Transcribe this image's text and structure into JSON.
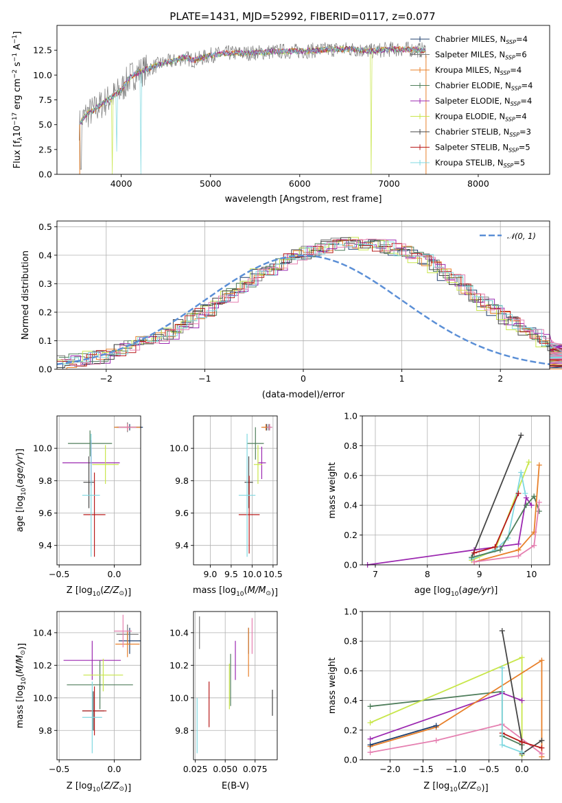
{
  "figure_title": "PLATE=1431, MJD=52992, FIBERID=0117, z=0.077",
  "colors": {
    "Chabrier MILES": "#1f3f6e",
    "Salpeter MILES": "#7a7a7a",
    "Kroupa MILES": "#e8802a",
    "Chabrier ELODIE": "#4e7d5a",
    "Salpeter ELODIE": "#9b27b0",
    "Kroupa ELODIE": "#c8e64a",
    "Chabrier STELIB": "#454545",
    "Salpeter STELIB": "#b71818",
    "Kroupa STELIB": "#7fd8e0",
    "gauss": "#5b8fd6",
    "pink": "#e57fb0"
  },
  "legend_spectrum": [
    {
      "model": "Chabrier MILES",
      "n": "4"
    },
    {
      "model": "Salpeter MILES",
      "n": "6"
    },
    {
      "model": "Kroupa MILES",
      "n": "4"
    },
    {
      "model": "Chabrier ELODIE",
      "n": "4"
    },
    {
      "model": "Salpeter ELODIE",
      "n": "4"
    },
    {
      "model": "Kroupa ELODIE",
      "n": "4"
    },
    {
      "model": "Chabrier STELIB",
      "n": "3"
    },
    {
      "model": "Salpeter STELIB",
      "n": "5"
    },
    {
      "model": "Kroupa STELIB",
      "n": "5"
    }
  ],
  "chart_data": [
    {
      "id": "spectrum",
      "type": "line",
      "title": "PLATE=1431, MJD=52992, FIBERID=0117, z=0.077",
      "xlabel": "wavelength [Angstrom, rest frame]",
      "ylabel_parts": [
        "Flux [f",
        "λ",
        "10",
        "−17",
        " erg cm",
        "−2",
        " s",
        "−1",
        " A",
        "−1",
        "]"
      ],
      "xlim": [
        3280,
        8800
      ],
      "ylim": [
        0,
        15
      ],
      "xticks": [
        4000,
        5000,
        6000,
        7000,
        8000
      ],
      "yticks": [
        0.0,
        2.5,
        5.0,
        7.5,
        10.0,
        12.5
      ],
      "xtick_labels": [
        "4000",
        "5000",
        "6000",
        "7000",
        "8000"
      ],
      "ytick_labels": [
        "0.0",
        "2.5",
        "5.0",
        "7.5",
        "10.0",
        "12.5"
      ],
      "series_continuum": {
        "x": [
          3530,
          3600,
          3700,
          3800,
          3900,
          4000,
          4100,
          4200,
          4300,
          4400,
          4500,
          4600,
          4700,
          4800,
          4900,
          5000,
          5200,
          5400,
          5600,
          5800,
          6000,
          6200,
          6400,
          6600,
          6800,
          7000,
          7200,
          7400
        ],
        "y": [
          5.0,
          6.0,
          6.5,
          7.2,
          7.8,
          8.5,
          9.8,
          10.3,
          10.6,
          11.0,
          11.3,
          11.4,
          11.8,
          11.5,
          11.7,
          12.0,
          12.2,
          12.2,
          12.3,
          12.4,
          12.4,
          12.5,
          12.6,
          12.6,
          12.4,
          12.6,
          12.6,
          12.5
        ]
      },
      "notes": "nine overlapping model/data spectra; data shown in grey"
    },
    {
      "id": "residuals",
      "type": "histogram",
      "xlabel": "(data-model)/error",
      "ylabel": "Normed distribution",
      "xlim": [
        -2.5,
        2.5
      ],
      "ylim": [
        0,
        0.52
      ],
      "xticks": [
        -2,
        -1,
        0,
        1,
        2
      ],
      "yticks": [
        0.0,
        0.1,
        0.2,
        0.3,
        0.4,
        0.5
      ],
      "xtick_labels": [
        "−2",
        "−1",
        "0",
        "1",
        "2"
      ],
      "ytick_labels": [
        "0.0",
        "0.1",
        "0.2",
        "0.3",
        "0.4",
        "0.5"
      ],
      "legend": "𝒩(0, 1)",
      "bin_width": 0.1,
      "base_density": [
        0.025,
        0.03,
        0.035,
        0.04,
        0.045,
        0.055,
        0.065,
        0.075,
        0.09,
        0.1,
        0.115,
        0.13,
        0.15,
        0.17,
        0.19,
        0.21,
        0.235,
        0.26,
        0.285,
        0.31,
        0.33,
        0.35,
        0.37,
        0.385,
        0.4,
        0.41,
        0.42,
        0.43,
        0.435,
        0.44,
        0.445,
        0.44,
        0.435,
        0.43,
        0.42,
        0.41,
        0.395,
        0.38,
        0.36,
        0.335,
        0.31,
        0.28,
        0.255,
        0.23,
        0.205,
        0.18,
        0.16,
        0.14,
        0.12,
        0.1
      ],
      "tail_density": [
        0.085,
        0.07,
        0.06,
        0.05,
        0.045,
        0.04,
        0.035,
        0.03,
        0.03,
        0.025
      ],
      "gauss": {
        "mu": 0,
        "sigma": 1
      }
    },
    {
      "id": "age_vs_Z",
      "type": "errorbar",
      "xlabel": "Z [log10(Z/Z⊙)]",
      "ylabel": "age  [log10(age/yr)]",
      "xlim": [
        -0.52,
        0.24
      ],
      "ylim": [
        9.28,
        10.2
      ],
      "xticks": [
        -0.5,
        0.0
      ],
      "yticks": [
        9.4,
        9.6,
        9.8,
        10.0
      ],
      "xtick_labels": [
        "−0.5",
        "0.0"
      ],
      "ytick_labels": [
        "9.4",
        "9.6",
        "9.8",
        "10.0"
      ],
      "points": [
        {
          "model": "Chabrier MILES",
          "x": 0.14,
          "y": 10.13,
          "xerr": 0.12,
          "yerr": 0.02
        },
        {
          "model": "Salpeter MILES",
          "x": 0.12,
          "y": 10.13,
          "xerr": 0.12,
          "yerr": 0.03
        },
        {
          "model": "Kroupa MILES",
          "x": 0.12,
          "y": 10.13,
          "xerr": 0.12,
          "yerr": 0.02
        },
        {
          "model": "Chabrier ELODIE",
          "x": -0.22,
          "y": 10.03,
          "xerr": 0.2,
          "yerr": 0.08
        },
        {
          "model": "Salpeter ELODIE",
          "x": -0.21,
          "y": 9.91,
          "xerr": 0.26,
          "yerr": 0.14
        },
        {
          "model": "Kroupa ELODIE",
          "x": -0.08,
          "y": 9.9,
          "xerr": 0.12,
          "yerr": 0.12
        },
        {
          "model": "Chabrier STELIB",
          "x": -0.23,
          "y": 9.79,
          "xerr": 0.05,
          "yerr": 0.16
        },
        {
          "model": "Salpeter STELIB",
          "x": -0.18,
          "y": 9.59,
          "xerr": 0.1,
          "yerr": 0.26
        },
        {
          "model": "Kroupa STELIB",
          "x": -0.21,
          "y": 9.71,
          "xerr": 0.08,
          "yerr": 0.38
        },
        {
          "model": "pink",
          "x": 0.12,
          "y": 10.13,
          "xerr": 0.08,
          "yerr": 0.02
        }
      ]
    },
    {
      "id": "age_vs_mass",
      "type": "errorbar",
      "xlabel": "mass [log10(M/M⊙)]",
      "ylabel": "",
      "xlim": [
        8.6,
        10.6
      ],
      "ylim": [
        9.28,
        10.2
      ],
      "xticks": [
        9.0,
        9.5,
        10.0,
        10.5
      ],
      "yticks": [
        9.4,
        9.6,
        9.8,
        10.0
      ],
      "xtick_labels": [
        "9.0",
        "9.5",
        "10.0",
        "10.5"
      ],
      "ytick_labels": [
        "9.4",
        "9.6",
        "9.8",
        "10.0"
      ],
      "points": [
        {
          "model": "Chabrier MILES",
          "x": 10.35,
          "y": 10.13,
          "xerr": 0.1,
          "yerr": 0.02
        },
        {
          "model": "Salpeter MILES",
          "x": 10.4,
          "y": 10.13,
          "xerr": 0.08,
          "yerr": 0.02
        },
        {
          "model": "Kroupa MILES",
          "x": 10.33,
          "y": 10.13,
          "xerr": 0.11,
          "yerr": 0.02
        },
        {
          "model": "Chabrier ELODIE",
          "x": 10.08,
          "y": 10.03,
          "xerr": 0.2,
          "yerr": 0.1
        },
        {
          "model": "Salpeter ELODIE",
          "x": 10.23,
          "y": 9.91,
          "xerr": 0.1,
          "yerr": 0.1
        },
        {
          "model": "Kroupa ELODIE",
          "x": 10.14,
          "y": 9.9,
          "xerr": 0.1,
          "yerr": 0.12
        },
        {
          "model": "Chabrier STELIB",
          "x": 9.92,
          "y": 9.79,
          "xerr": 0.1,
          "yerr": 0.16
        },
        {
          "model": "Salpeter STELIB",
          "x": 9.93,
          "y": 9.59,
          "xerr": 0.25,
          "yerr": 0.24
        },
        {
          "model": "Kroupa STELIB",
          "x": 9.88,
          "y": 9.71,
          "xerr": 0.2,
          "yerr": 0.38
        },
        {
          "model": "pink",
          "x": 10.42,
          "y": 10.13,
          "xerr": 0.06,
          "yerr": 0.02
        }
      ]
    },
    {
      "id": "weight_vs_age",
      "type": "line",
      "xlabel": "age  [log10(age/yr)]",
      "ylabel": "mass weight",
      "xlim": [
        6.75,
        10.35
      ],
      "ylim": [
        0,
        1
      ],
      "xticks": [
        7,
        8,
        9,
        10
      ],
      "yticks": [
        0.0,
        0.2,
        0.4,
        0.6,
        0.8,
        1.0
      ],
      "xtick_labels": [
        "7",
        "8",
        "9",
        "10"
      ],
      "ytick_labels": [
        "0.0",
        "0.2",
        "0.4",
        "0.6",
        "0.8",
        "1.0"
      ],
      "series": [
        {
          "model": "Salpeter ELODIE",
          "x": [
            6.85,
            8.9,
            9.75,
            9.9,
            10.0
          ],
          "y": [
            0.0,
            0.1,
            0.14,
            0.45,
            0.4
          ]
        },
        {
          "model": "Chabrier STELIB",
          "x": [
            8.85,
            9.8
          ],
          "y": [
            0.05,
            0.87
          ]
        },
        {
          "model": "Kroupa ELODIE",
          "x": [
            8.85,
            9.3,
            9.95
          ],
          "y": [
            0.03,
            0.1,
            0.69
          ]
        },
        {
          "model": "Kroupa STELIB",
          "x": [
            8.85,
            9.3,
            9.55,
            9.8,
            9.88
          ],
          "y": [
            0.04,
            0.1,
            0.18,
            0.62,
            0.48
          ]
        },
        {
          "model": "Chabrier ELODIE",
          "x": [
            8.85,
            9.4,
            9.9,
            10.05,
            10.15
          ],
          "y": [
            0.05,
            0.1,
            0.4,
            0.46,
            0.36
          ]
        },
        {
          "model": "Salpeter STELIB",
          "x": [
            8.9,
            9.3,
            9.75
          ],
          "y": [
            0.08,
            0.12,
            0.48
          ]
        },
        {
          "model": "Kroupa MILES",
          "x": [
            8.9,
            9.75,
            10.05,
            10.15
          ],
          "y": [
            0.02,
            0.1,
            0.22,
            0.67
          ]
        },
        {
          "model": "pink",
          "x": [
            8.9,
            9.75,
            10.05,
            10.15
          ],
          "y": [
            0.02,
            0.06,
            0.13,
            0.42
          ]
        }
      ]
    },
    {
      "id": "mass_vs_Z",
      "type": "errorbar",
      "xlabel": "Z [log10(Z/Z⊙)]",
      "ylabel": "mass [log10(M/M⊙)]",
      "xlim": [
        -0.52,
        0.24
      ],
      "ylim": [
        9.62,
        10.53
      ],
      "xticks": [
        -0.5,
        0.0
      ],
      "yticks": [
        9.8,
        10.0,
        10.2,
        10.4
      ],
      "xtick_labels": [
        "−0.5",
        "0.0"
      ],
      "ytick_labels": [
        "9.8",
        "10.0",
        "10.2",
        "10.4"
      ],
      "points": [
        {
          "model": "Chabrier MILES",
          "x": 0.14,
          "y": 10.35,
          "xerr": 0.1,
          "yerr": 0.08
        },
        {
          "model": "Salpeter MILES",
          "x": 0.12,
          "y": 10.39,
          "xerr": 0.1,
          "yerr": 0.06
        },
        {
          "model": "Kroupa MILES",
          "x": 0.12,
          "y": 10.33,
          "xerr": 0.11,
          "yerr": 0.08
        },
        {
          "model": "Chabrier ELODIE",
          "x": -0.13,
          "y": 10.08,
          "xerr": 0.3,
          "yerr": 0.15
        },
        {
          "model": "Salpeter ELODIE",
          "x": -0.2,
          "y": 10.23,
          "xerr": 0.26,
          "yerr": 0.12
        },
        {
          "model": "Kroupa ELODIE",
          "x": -0.1,
          "y": 10.14,
          "xerr": 0.18,
          "yerr": 0.1
        },
        {
          "model": "Chabrier STELIB",
          "x": -0.19,
          "y": 9.92,
          "xerr": 0.1,
          "yerr": 0.12
        },
        {
          "model": "Salpeter STELIB",
          "x": -0.18,
          "y": 9.92,
          "xerr": 0.11,
          "yerr": 0.15
        },
        {
          "model": "Kroupa STELIB",
          "x": -0.2,
          "y": 9.88,
          "xerr": 0.09,
          "yerr": 0.22
        },
        {
          "model": "pink",
          "x": 0.08,
          "y": 10.41,
          "xerr": 0.08,
          "yerr": 0.1
        }
      ]
    },
    {
      "id": "mass_vs_EBV",
      "type": "errorbar",
      "xlabel": "E(B-V)",
      "ylabel": "",
      "xlim": [
        0.0235,
        0.0935
      ],
      "ylim": [
        9.62,
        10.53
      ],
      "xticks": [
        0.025,
        0.05,
        0.075
      ],
      "yticks": [
        9.8,
        10.0,
        10.2,
        10.4
      ],
      "xtick_labels": [
        "0.025",
        "0.050",
        "0.075"
      ],
      "ytick_labels": [
        "9.8",
        "10.0",
        "10.2",
        "10.4"
      ],
      "points": [
        {
          "model": "Chabrier MILES",
          "x": 0.0695,
          "y": 10.35,
          "xerr": 0.0,
          "yerr": 0.08
        },
        {
          "model": "Salpeter MILES",
          "x": 0.0285,
          "y": 10.4,
          "xerr": 0.0,
          "yerr": 0.1
        },
        {
          "model": "Kroupa MILES",
          "x": 0.0695,
          "y": 10.28,
          "xerr": 0.0,
          "yerr": 0.15
        },
        {
          "model": "Chabrier ELODIE",
          "x": 0.0545,
          "y": 10.11,
          "xerr": 0.0,
          "yerr": 0.16
        },
        {
          "model": "Salpeter ELODIE",
          "x": 0.0585,
          "y": 10.23,
          "xerr": 0.0,
          "yerr": 0.12
        },
        {
          "model": "Kroupa ELODIE",
          "x": 0.0535,
          "y": 10.07,
          "xerr": 0.0,
          "yerr": 0.14
        },
        {
          "model": "Chabrier STELIB",
          "x": 0.0895,
          "y": 9.97,
          "xerr": 0.0,
          "yerr": 0.08
        },
        {
          "model": "Salpeter STELIB",
          "x": 0.0365,
          "y": 9.96,
          "xerr": 0.0,
          "yerr": 0.14
        },
        {
          "model": "Kroupa STELIB",
          "x": 0.0265,
          "y": 9.83,
          "xerr": 0.0,
          "yerr": 0.17
        },
        {
          "model": "pink",
          "x": 0.0725,
          "y": 10.38,
          "xerr": 0.0,
          "yerr": 0.11
        }
      ]
    },
    {
      "id": "weight_vs_Z",
      "type": "line",
      "xlabel": "Z [log10(Z/Z⊙)]",
      "ylabel": "mass weight",
      "xlim": [
        -2.42,
        0.42
      ],
      "ylim": [
        0,
        1
      ],
      "xticks": [
        -2.0,
        -1.5,
        -1.0,
        -0.5,
        0.0
      ],
      "yticks": [
        0.0,
        0.2,
        0.4,
        0.6,
        0.8,
        1.0
      ],
      "xtick_labels": [
        "−2.0",
        "−1.5",
        "−1.0",
        "−0.5",
        "0.0"
      ],
      "ytick_labels": [
        "0.0",
        "0.2",
        "0.4",
        "0.6",
        "0.8",
        "1.0"
      ],
      "series": [
        {
          "model": "Chabrier ELODIE",
          "x": [
            -2.3,
            -0.3,
            -0.3,
            0.0
          ],
          "y": [
            0.36,
            0.46,
            0.16,
            0.1
          ]
        },
        {
          "model": "Kroupa ELODIE",
          "x": [
            -2.3,
            0.0,
            0.0
          ],
          "y": [
            0.25,
            0.69,
            0.03
          ]
        },
        {
          "model": "Salpeter ELODIE",
          "x": [
            -2.3,
            -0.3,
            0.0
          ],
          "y": [
            0.14,
            0.45,
            0.4
          ]
        },
        {
          "model": "Kroupa MILES",
          "x": [
            -2.3,
            -1.3,
            0.3,
            0.3
          ],
          "y": [
            0.09,
            0.22,
            0.67,
            0.02
          ]
        },
        {
          "model": "pink",
          "x": [
            -2.3,
            -1.3,
            -0.3,
            0.3
          ],
          "y": [
            0.05,
            0.13,
            0.24,
            0.04
          ]
        },
        {
          "model": "Chabrier MILES",
          "x": [
            -2.3,
            -1.3
          ],
          "y": [
            0.1,
            0.23
          ]
        },
        {
          "model": "Chabrier STELIB",
          "x": [
            -0.3,
            0.0,
            0.0,
            0.3
          ],
          "y": [
            0.87,
            0.12,
            0.04,
            0.13
          ]
        },
        {
          "model": "Salpeter STELIB",
          "x": [
            -0.3,
            0.0,
            0.3
          ],
          "y": [
            0.18,
            0.12,
            0.08
          ]
        },
        {
          "model": "Kroupa STELIB",
          "x": [
            -0.3,
            -0.3,
            0.0
          ],
          "y": [
            0.62,
            0.1,
            0.05
          ]
        }
      ]
    }
  ]
}
